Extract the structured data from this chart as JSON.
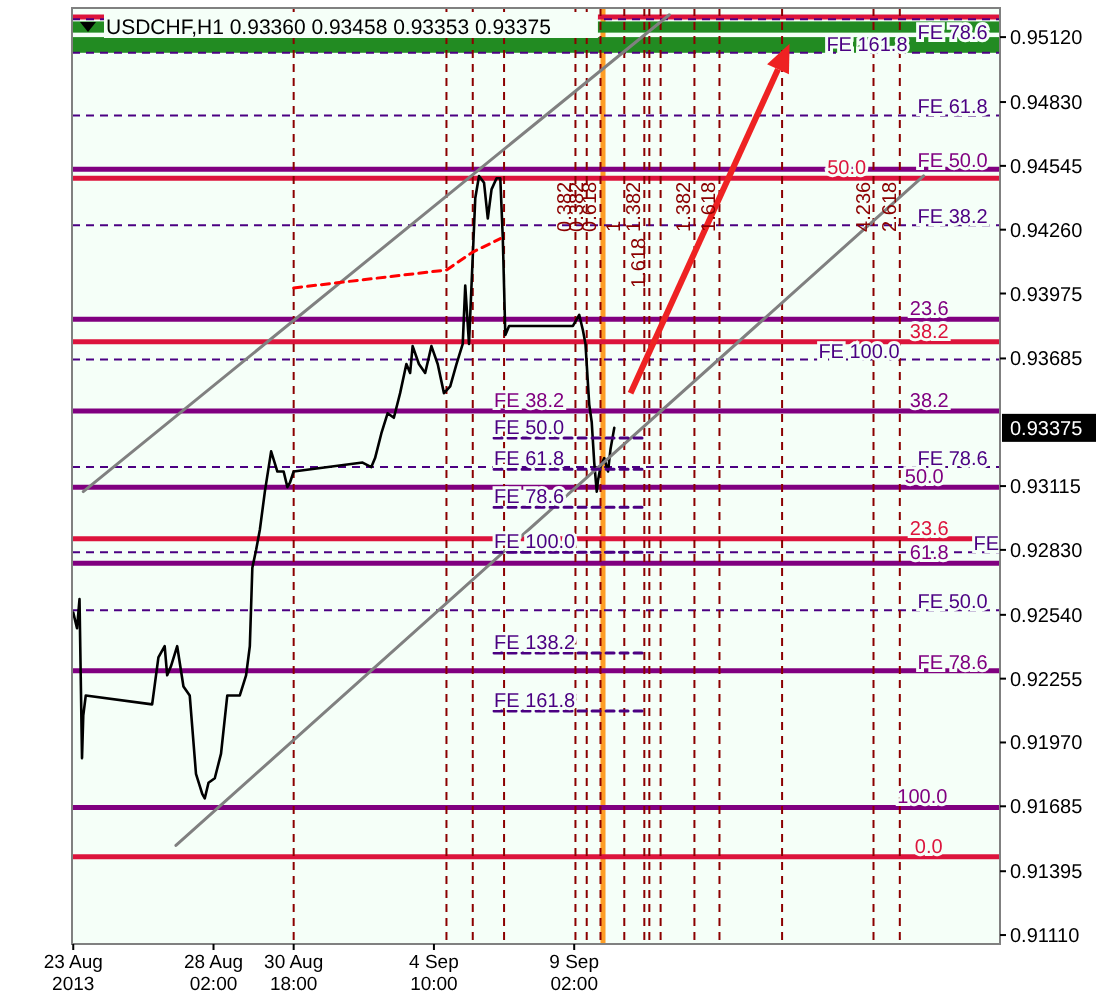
{
  "chart_data": {
    "type": "line",
    "title": "USDCHF,H1  0.93360 0.93458 0.93353 0.93375",
    "xlim": [
      "2013-08-23T09:00",
      "2013-09-23T06:00"
    ],
    "xticks": [
      {
        "value": "2013-08-23T10:00",
        "label": "23 Aug 2013"
      },
      {
        "value": "2013-08-28T02:00",
        "label": "28 Aug 02:00"
      },
      {
        "value": "2013-08-30T18:00",
        "label": "30 Aug 18:00"
      },
      {
        "value": "2013-09-04T10:00",
        "label": "4 Sep 10:00"
      },
      {
        "value": "2013-09-09T02:00",
        "label": "9 Sep 02:00"
      }
    ],
    "ylim": [
      0.9107,
      0.9525
    ],
    "yticks": [
      {
        "value": 0.9111,
        "label": "0.91110"
      },
      {
        "value": 0.91395,
        "label": "0.91395"
      },
      {
        "value": 0.91685,
        "label": "0.91685"
      },
      {
        "value": 0.9197,
        "label": "0.91970"
      },
      {
        "value": 0.92255,
        "label": "0.92255"
      },
      {
        "value": 0.9254,
        "label": "0.92540"
      },
      {
        "value": 0.9283,
        "label": "0.92830"
      },
      {
        "value": 0.93115,
        "label": "0.93115"
      },
      {
        "value": 0.93685,
        "label": "0.93685"
      },
      {
        "value": 0.93975,
        "label": "0.93975"
      },
      {
        "value": 0.9426,
        "label": "0.94260"
      },
      {
        "value": 0.94545,
        "label": "0.94545"
      },
      {
        "value": 0.9483,
        "label": "0.94830"
      },
      {
        "value": 0.9512,
        "label": "0.95120"
      }
    ],
    "series": [
      {
        "color": "#000000",
        "x": [
          "2013-08-23T10:00",
          "2013-08-23T13:00",
          "2013-08-23T15:00",
          "2013-08-23T17:00",
          "2013-08-23T18:00",
          "2013-08-23T20:00",
          "2013-08-26T01:00",
          "2013-08-26T06:00",
          "2013-08-26T11:00",
          "2013-08-26T13:00",
          "2013-08-26T16:00",
          "2013-08-26T21:00",
          "2013-08-27T02:00",
          "2013-08-27T07:00",
          "2013-08-27T12:00",
          "2013-08-27T17:00",
          "2013-08-27T19:00",
          "2013-08-27T22:00",
          "2013-08-28T03:00",
          "2013-08-28T08:00",
          "2013-08-28T13:00",
          "2013-08-28T18:00",
          "2013-08-28T23:00",
          "2013-08-29T04:00",
          "2013-08-29T07:00",
          "2013-08-29T09:00",
          "2013-08-29T12:00",
          "2013-08-29T15:00",
          "2013-08-29T19:00",
          "2013-08-30T00:00",
          "2013-08-30T05:00",
          "2013-08-30T10:00",
          "2013-08-30T13:00",
          "2013-08-30T15:00",
          "2013-08-30T18:00",
          "2013-09-02T01:00",
          "2013-09-02T08:00",
          "2013-09-02T11:00",
          "2013-09-02T16:00",
          "2013-09-02T21:00",
          "2013-09-03T02:00",
          "2013-09-03T07:00",
          "2013-09-03T12:00",
          "2013-09-03T15:00",
          "2013-09-03T17:00",
          "2013-09-03T22:00",
          "2013-09-04T03:00",
          "2013-09-04T08:00",
          "2013-09-04T13:00",
          "2013-09-04T18:00",
          "2013-09-04T23:00",
          "2013-09-05T04:00",
          "2013-09-05T09:00",
          "2013-09-05T11:00",
          "2013-09-05T14:00",
          "2013-09-05T17:00",
          "2013-09-05T19:00",
          "2013-09-05T22:00",
          "2013-09-06T02:00",
          "2013-09-06T05:00",
          "2013-09-06T08:00",
          "2013-09-06T12:00",
          "2013-09-06T15:00",
          "2013-09-06T17:00",
          "2013-09-06T19:00",
          "2013-09-06T22:00",
          "2013-09-09T01:00",
          "2013-09-09T06:00",
          "2013-09-09T09:00",
          "2013-09-09T11:00",
          "2013-09-09T14:00",
          "2013-09-09T16:00",
          "2013-09-09T18:00",
          "2013-09-09T20:00",
          "2013-09-09T21:00",
          "2013-09-09T23:00",
          "2013-09-10T02:00",
          "2013-09-10T05:00",
          "2013-09-10T07:00",
          "2013-09-10T10:00"
        ],
        "values": [
          0.9255,
          0.9248,
          0.9261,
          0.919,
          0.9209,
          0.9218,
          0.9214,
          0.9235,
          0.924,
          0.9227,
          0.9231,
          0.924,
          0.9222,
          0.9218,
          0.9183,
          0.9174,
          0.9172,
          0.9179,
          0.9181,
          0.9192,
          0.9218,
          0.9218,
          0.9218,
          0.9227,
          0.924,
          0.9275,
          0.9283,
          0.9292,
          0.9309,
          0.9327,
          0.9318,
          0.9318,
          0.9311,
          0.9313,
          0.9318,
          0.9322,
          0.932,
          0.9324,
          0.9335,
          0.9344,
          0.9342,
          0.9353,
          0.9366,
          0.9362,
          0.9374,
          0.9366,
          0.9362,
          0.9374,
          0.9366,
          0.9353,
          0.9356,
          0.9366,
          0.9375,
          0.9401,
          0.9375,
          0.9414,
          0.944,
          0.945,
          0.9447,
          0.9431,
          0.9444,
          0.9449,
          0.9449,
          0.9422,
          0.9379,
          0.9383,
          0.9383,
          0.9388,
          0.9381,
          0.9375,
          0.9348,
          0.934,
          0.9322,
          0.9309,
          0.9314,
          0.932,
          0.9324,
          0.9318,
          0.9328,
          0.93375
        ]
      },
      {
        "color": "#808080",
        "x": [
          "2013-08-23T18:00",
          "2013-09-12T06:00"
        ],
        "values": [
          0.9309,
          0.9522
        ]
      },
      {
        "color": "#808080",
        "x": [
          "2013-08-26T20:00",
          "2013-09-20T17:00"
        ],
        "values": [
          0.9151,
          0.945
        ]
      },
      {
        "color": "#ff0000",
        "line_style": "dashed",
        "x": [
          "2013-08-30T18:00",
          "2013-09-04T20:00",
          "2013-09-05T17:00",
          "2013-09-06T15:00"
        ],
        "values": [
          0.94,
          0.9408,
          0.9416,
          0.9422
        ]
      },
      {
        "color": "#4b0082",
        "line_style": "dashed",
        "x": [
          "2013-09-06T10:00",
          "2013-09-11T10:00"
        ],
        "values": [
          0.9333,
          0.9333
        ]
      },
      {
        "color": "#4b0082",
        "line_style": "dashed",
        "x": [
          "2013-09-06T10:00",
          "2013-09-11T10:00"
        ],
        "values": [
          0.9319,
          0.9319
        ]
      },
      {
        "color": "#4b0082",
        "line_style": "dashed",
        "x": [
          "2013-09-06T10:00",
          "2013-09-11T10:00"
        ],
        "values": [
          0.9302,
          0.9302
        ]
      },
      {
        "color": "#4b0082",
        "line_style": "dashed",
        "x": [
          "2013-09-06T10:00",
          "2013-09-11T10:00"
        ],
        "values": [
          0.9282,
          0.9282
        ]
      },
      {
        "color": "#4b0082",
        "line_style": "dashed",
        "x": [
          "2013-09-06T10:00",
          "2013-09-11T10:00"
        ],
        "values": [
          0.9237,
          0.9237
        ]
      },
      {
        "color": "#4b0082",
        "line_style": "dashed",
        "x": [
          "2013-09-06T10:00",
          "2013-09-11T10:00"
        ],
        "values": [
          0.9211,
          0.9211
        ]
      }
    ],
    "bands": [
      {
        "axis": "x",
        "from": "2013-09-09T23:00",
        "to": "2013-09-10T03:00",
        "color": "#ff8c00"
      },
      {
        "axis": "y",
        "from": 0.9514,
        "to": 0.9519,
        "color": "#228b22"
      },
      {
        "axis": "y",
        "from": 0.9505,
        "to": 0.9512,
        "color": "#228b22"
      }
    ],
    "ref_lines": [
      {
        "axis": "y",
        "value": 0.9521,
        "color": "#dc143c",
        "line_style": "solid"
      },
      {
        "axis": "y",
        "value": 0.952,
        "color": "#4b0082",
        "line_style": "dashed",
        "label": "FE 78.6"
      },
      {
        "axis": "y",
        "value": 0.9505,
        "color": "#4b0082",
        "line_style": "dashed",
        "label": "FE 161.8"
      },
      {
        "axis": "y",
        "value": 0.9477,
        "color": "#4b0082",
        "line_style": "dashed",
        "label": "FE 61.8"
      },
      {
        "axis": "y",
        "value": 0.9453,
        "color": "#800080",
        "line_style": "solid",
        "label": "FE 50.0"
      },
      {
        "axis": "y",
        "value": 0.9449,
        "color": "#dc143c",
        "line_style": "solid"
      },
      {
        "axis": "y",
        "value": 0.9428,
        "color": "#4b0082",
        "line_style": "dashed",
        "label": "FE 38.2"
      },
      {
        "axis": "y",
        "value": 0.9386,
        "color": "#800080",
        "line_style": "solid"
      },
      {
        "axis": "y",
        "value": 0.9376,
        "color": "#dc143c",
        "line_style": "solid"
      },
      {
        "axis": "y",
        "value": 0.9368,
        "color": "#4b0082",
        "line_style": "dashed",
        "label": "FE 100.0"
      },
      {
        "axis": "y",
        "value": 0.9345,
        "color": "#800080",
        "line_style": "solid"
      },
      {
        "axis": "y",
        "value": 0.932,
        "color": "#4b0082",
        "line_style": "dashed",
        "label": "FE 78.6"
      },
      {
        "axis": "y",
        "value": 0.9311,
        "color": "#800080",
        "line_style": "solid"
      },
      {
        "axis": "y",
        "value": 0.9288,
        "color": "#dc143c",
        "line_style": "solid"
      },
      {
        "axis": "y",
        "value": 0.9282,
        "color": "#4b0082",
        "line_style": "dashed",
        "label": "FE"
      },
      {
        "axis": "y",
        "value": 0.9277,
        "color": "#800080",
        "line_style": "solid"
      },
      {
        "axis": "y",
        "value": 0.9256,
        "color": "#4b0082",
        "line_style": "dashed",
        "label": "FE 50.0"
      },
      {
        "axis": "y",
        "value": 0.9229,
        "color": "#800080",
        "line_style": "solid",
        "label": "FE 78.6"
      },
      {
        "axis": "y",
        "value": 0.9168,
        "color": "#800080",
        "line_style": "solid"
      },
      {
        "axis": "y",
        "value": 0.9146,
        "color": "#dc143c",
        "line_style": "solid"
      },
      {
        "axis": "x",
        "value": "2013-08-30T18:00",
        "color": "#8b0000",
        "line_style": "dashed"
      },
      {
        "axis": "x",
        "value": "2013-09-04T20:00",
        "color": "#8b0000",
        "line_style": "dashed"
      },
      {
        "axis": "x",
        "value": "2013-09-05T17:00",
        "color": "#8b0000",
        "line_style": "dashed"
      },
      {
        "axis": "x",
        "value": "2013-09-06T18:00",
        "color": "#8b0000",
        "line_style": "dashed"
      },
      {
        "axis": "x",
        "value": "2013-09-09T03:00",
        "color": "#8b0000",
        "line_style": "dashed"
      },
      {
        "axis": "x",
        "value": "2013-09-09T12:00",
        "color": "#8b0000",
        "line_style": "dashed"
      },
      {
        "axis": "x",
        "value": "2013-09-09T23:00",
        "color": "#8b0000",
        "line_style": "dashed"
      },
      {
        "axis": "x",
        "value": "2013-09-10T18:00",
        "color": "#8b0000",
        "line_style": "dashed"
      },
      {
        "axis": "x",
        "value": "2013-09-11T10:00",
        "color": "#8b0000",
        "line_style": "dashed"
      },
      {
        "axis": "x",
        "value": "2013-09-11T14:00",
        "color": "#8b0000",
        "line_style": "dashed"
      },
      {
        "axis": "x",
        "value": "2013-09-11T23:00",
        "color": "#8b0000",
        "line_style": "dashed"
      },
      {
        "axis": "x",
        "value": "2013-09-13T02:00",
        "color": "#8b0000",
        "line_style": "dashed"
      },
      {
        "axis": "x",
        "value": "2013-09-13T22:00",
        "color": "#8b0000",
        "line_style": "dashed"
      },
      {
        "axis": "x",
        "value": "2013-09-16T00:00",
        "color": "#8b0000",
        "line_style": "dashed"
      },
      {
        "axis": "x",
        "value": "2013-09-19T01:00",
        "color": "#8b0000",
        "line_style": "dashed"
      },
      {
        "axis": "x",
        "value": "2013-09-19T22:00",
        "color": "#8b0000",
        "line_style": "dashed"
      }
    ],
    "annotations": [
      {
        "text": "FE 38.2",
        "x": "2013-09-06T10:00",
        "y": 0.9345
      },
      {
        "text": "FE 50.0",
        "x": "2013-09-06T10:00",
        "y": 0.9333
      },
      {
        "text": "FE 61.8",
        "x": "2013-09-06T10:00",
        "y": 0.9319
      },
      {
        "text": "FE 78.6",
        "x": "2013-09-06T10:00",
        "y": 0.9302
      },
      {
        "text": "FE 100.0",
        "x": "2013-09-06T10:00",
        "y": 0.9282
      },
      {
        "text": "FE 138.2",
        "x": "2013-09-06T10:00",
        "y": 0.9237
      },
      {
        "text": "FE 161.8",
        "x": "2013-09-06T10:00",
        "y": 0.9211
      },
      {
        "text": "50.0",
        "x": "2013-09-17T12:00",
        "y": 0.9449
      },
      {
        "text": "23.6",
        "x": "2013-09-20T06:00",
        "y": 0.9386
      },
      {
        "text": "38.2",
        "x": "2013-09-20T06:00",
        "y": 0.9376
      },
      {
        "text": "38.2",
        "x": "2013-09-20T06:00",
        "y": 0.9345
      },
      {
        "text": "50.0",
        "x": "2013-09-20T02:00",
        "y": 0.9311
      },
      {
        "text": "23.6",
        "x": "2013-09-20T06:00",
        "y": 0.9288
      },
      {
        "text": "61.8",
        "x": "2013-09-20T06:00",
        "y": 0.9277
      },
      {
        "text": "100.0",
        "x": "2013-09-19T20:00",
        "y": 0.9168
      },
      {
        "text": "0.0",
        "x": "2013-09-20T10:00",
        "y": 0.9146
      },
      {
        "text": "0.382",
        "x": "2013-09-09T03:00",
        "y": 0.9425
      },
      {
        "text": "0.382",
        "x": "2013-09-09T12:00",
        "y": 0.9425
      },
      {
        "text": "0.618",
        "x": "2013-09-09T23:00",
        "y": 0.9425
      },
      {
        "text": "1",
        "x": "2013-09-10T18:00",
        "y": 0.9425
      },
      {
        "text": "1.382",
        "x": "2013-09-11T10:00",
        "y": 0.9425
      },
      {
        "text": "1.618",
        "x": "2013-09-11T14:00",
        "y": 0.94
      },
      {
        "text": "1.382",
        "x": "2013-09-13T02:00",
        "y": 0.9425
      },
      {
        "text": "1.618",
        "x": "2013-09-13T22:00",
        "y": 0.9425
      },
      {
        "text": "4.236",
        "x": "2013-09-19T01:00",
        "y": 0.9425
      },
      {
        "text": "2.618",
        "x": "2013-09-19T22:00",
        "y": 0.9425
      },
      "0.93375"
    ]
  }
}
